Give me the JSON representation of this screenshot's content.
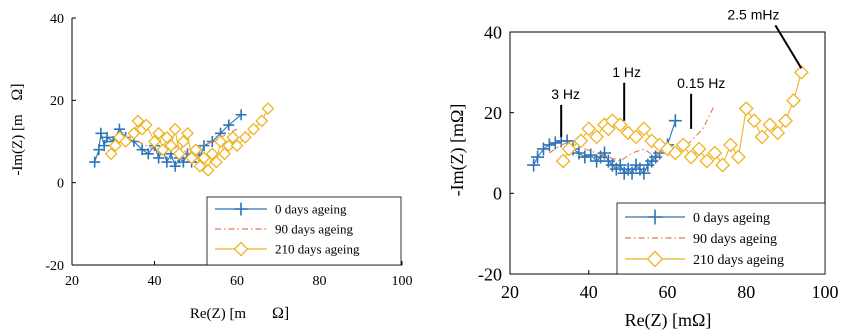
{
  "chart_data": [
    {
      "type": "scatter",
      "xlabel": "Re(Z) [m",
      "xlabel_unit": "Ω]",
      "ylabel": "-Im(Z) [m",
      "ylabel_unit": "Ω]",
      "xlim": [
        20,
        100
      ],
      "ylim": [
        -20,
        40
      ],
      "xticks": [
        "20",
        "40",
        "60",
        "80",
        "100"
      ],
      "yticks": [
        "-20",
        "0",
        "20",
        "40"
      ],
      "legend_position": "bottom-right",
      "series": [
        {
          "name": "0 days ageing",
          "color": "#2e75b6",
          "marker": "plus",
          "x": [
            25.5,
            26.5,
            27,
            27.8,
            28.5,
            30,
            31.5,
            33,
            35,
            37,
            38.5,
            40,
            41,
            42,
            43,
            44,
            45,
            46,
            47,
            48,
            49,
            50,
            51,
            52,
            54,
            56,
            58,
            61
          ],
          "y": [
            5,
            8,
            12,
            9,
            11,
            10,
            13,
            11,
            10,
            8,
            7,
            9,
            6,
            8,
            5,
            7,
            4,
            6,
            5,
            7,
            5,
            8,
            6,
            9,
            10,
            12,
            14,
            16.5
          ]
        },
        {
          "name": "90 days ageing",
          "color": "#e07b54",
          "marker": "dashdot",
          "x": [
            30,
            32,
            34,
            36,
            38,
            40,
            42,
            44,
            46,
            48,
            50,
            52,
            54,
            56,
            58,
            60
          ],
          "y": [
            9,
            10,
            11,
            10,
            9,
            8,
            7,
            8,
            9,
            7,
            8,
            9,
            10,
            11,
            12,
            13
          ]
        },
        {
          "name": "210 days ageing",
          "color": "#f0b323",
          "marker": "diamond",
          "x": [
            29.5,
            30.5,
            31.5,
            33,
            35,
            36,
            37,
            38,
            40,
            41,
            42,
            43,
            44,
            45,
            46,
            47,
            48,
            49,
            50,
            51,
            52,
            53,
            54,
            55,
            56,
            57,
            58,
            59,
            60,
            62,
            64,
            66,
            67.5
          ],
          "y": [
            7,
            9,
            11,
            10,
            12,
            15,
            13,
            14,
            10,
            12,
            8,
            11,
            9,
            13,
            7,
            10,
            12,
            6,
            8,
            4,
            6,
            3,
            7,
            5,
            10,
            7,
            9,
            11,
            9,
            11,
            13,
            15,
            18
          ]
        }
      ]
    },
    {
      "type": "scatter",
      "xlabel": "Re(Z) [mΩ]",
      "ylabel": "-Im(Z) [mΩ]",
      "xlim": [
        20,
        100
      ],
      "ylim": [
        -20,
        40
      ],
      "xticks": [
        "20",
        "40",
        "60",
        "80",
        "100"
      ],
      "yticks": [
        "-20",
        "0",
        "20",
        "40"
      ],
      "legend_position": "bottom-right",
      "annotations": [
        {
          "text": "3 Hz",
          "x": 33,
          "y": 13
        },
        {
          "text": "1 Hz",
          "x": 49,
          "y": 17
        },
        {
          "text": "0.15 Hz",
          "x": 66,
          "y": 15
        },
        {
          "text": "2.5 mHz",
          "x": 94,
          "y": 30
        }
      ],
      "series": [
        {
          "name": "0 days ageing",
          "color": "#2e75b6",
          "marker": "plus",
          "x": [
            26,
            27,
            28.5,
            30,
            31.5,
            33,
            34.5,
            36,
            37.5,
            39,
            40.5,
            42,
            43,
            44,
            45,
            46,
            47,
            48,
            49,
            50,
            51,
            52,
            53,
            54,
            55,
            56,
            57,
            58,
            60,
            62
          ],
          "y": [
            7,
            9,
            11,
            12,
            12.5,
            13,
            13,
            11,
            10,
            9,
            9.5,
            8,
            9,
            10,
            8,
            7,
            6,
            7,
            5,
            6,
            5,
            7,
            6,
            5,
            7,
            8,
            9,
            10,
            12,
            18
          ]
        },
        {
          "name": "90 days ageing",
          "color": "#e07b54",
          "marker": "dashdot",
          "x": [
            30,
            33,
            36,
            39,
            42,
            45,
            48,
            51,
            54,
            57,
            60,
            63,
            66,
            69,
            72
          ],
          "y": [
            10,
            12,
            13,
            11,
            10,
            9,
            8,
            10,
            11,
            9,
            12,
            10,
            13,
            16,
            22
          ]
        },
        {
          "name": "210 days ageing",
          "color": "#f0b323",
          "marker": "diamond",
          "x": [
            33.5,
            35,
            38,
            40,
            42,
            44,
            45,
            46,
            48,
            50,
            52,
            54,
            56,
            58,
            60,
            62,
            64,
            66,
            68,
            70,
            72,
            74,
            76,
            78,
            80,
            82,
            84,
            86,
            88,
            90,
            92,
            94
          ],
          "y": [
            8,
            11,
            13,
            16,
            14,
            17,
            16,
            18,
            17,
            15,
            14,
            16,
            13,
            12,
            11,
            10,
            12,
            9,
            11,
            8,
            10,
            7,
            12,
            9,
            21,
            18,
            14,
            17,
            15,
            18,
            23,
            30
          ]
        }
      ]
    }
  ]
}
